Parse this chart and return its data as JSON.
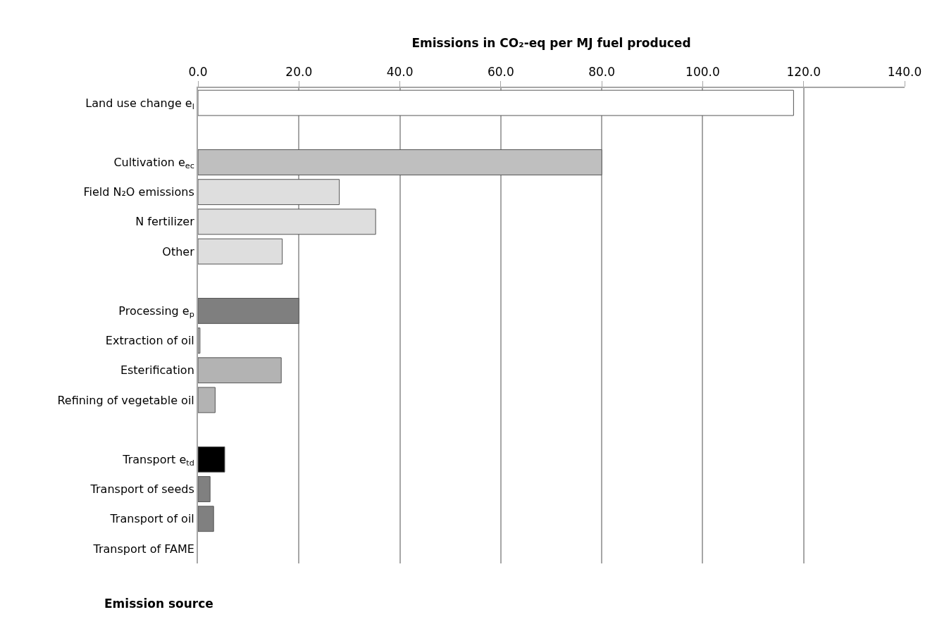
{
  "chart_data": {
    "type": "bar",
    "orientation": "horizontal",
    "xlabel": "Emissions in CO₂-eq per MJ fuel produced",
    "ylabel": "Emission source",
    "categories": [
      "Land use change e$_{l}$",
      null,
      "Cultivation e$_{ec}$",
      "Field N₂O emissions",
      "N fertilizer",
      "Other",
      null,
      "Processing e$_{p}$",
      "Extraction of oil",
      "Esterification",
      "Refining of vegetable oil",
      null,
      "Transport e$_{td}$",
      "Transport of seeds",
      "Transport of oil",
      "Transport of FAME"
    ],
    "values": [
      118,
      null,
      80,
      28,
      35.2,
      16.7,
      null,
      20,
      0.4,
      16.5,
      3.4,
      null,
      5.3,
      2.4,
      3.1,
      0
    ],
    "colors": [
      "#ffffff",
      "#ffffff",
      "#bfbfbf",
      "#dedede",
      "#dedede",
      "#dedede",
      "#ffffff",
      "#7f7f7f",
      "#b3b3b3",
      "#b3b3b3",
      "#b3b3b3",
      "#ffffff",
      "#000000",
      "#808080",
      "#808080",
      "#808080"
    ],
    "xlim": [
      0,
      140
    ],
    "xticks": [
      {
        "value": 0,
        "label": "0.0"
      },
      {
        "value": 20,
        "label": "20.0"
      },
      {
        "value": 40,
        "label": "40.0"
      },
      {
        "value": 60,
        "label": "60.0"
      },
      {
        "value": 80,
        "label": "80.0"
      },
      {
        "value": 100,
        "label": "100.0"
      },
      {
        "value": 120,
        "label": "120.0"
      },
      {
        "value": 140,
        "label": "140.0"
      }
    ],
    "grid": "x"
  }
}
